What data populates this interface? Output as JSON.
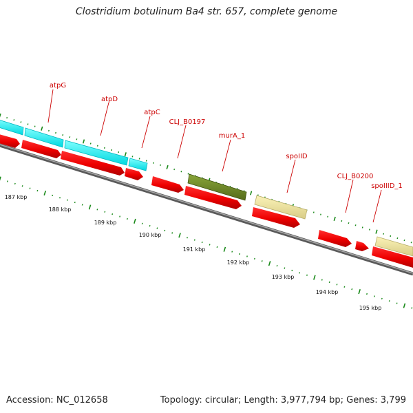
{
  "title": "Clostridium botulinum Ba4 str. 657, complete genome",
  "footer": {
    "accession": "Accession: NC_012658",
    "summary": "Topology: circular; Length: 3,977,794 bp; Genes: 3,799"
  },
  "colors": {
    "cds": "#ff0000",
    "blue_feature": "#00ffff",
    "green_feature": "#6b8e23",
    "khaki_feature": "#f0e68c",
    "backbone": "#7f7f7f",
    "tick": "#1a8a1a",
    "label": "#cc0000"
  },
  "gene_labels": [
    "atpG",
    "atpD",
    "atpC",
    "CLJ_B0197",
    "murA_1",
    "spoIID",
    "CLJ_B0200",
    "spoIIID_1"
  ],
  "kbp_labels": [
    "187 kbp",
    "188 kbp",
    "189 kbp",
    "190 kbp",
    "191 kbp",
    "192 kbp",
    "193 kbp",
    "194 kbp",
    "195 kbp"
  ]
}
